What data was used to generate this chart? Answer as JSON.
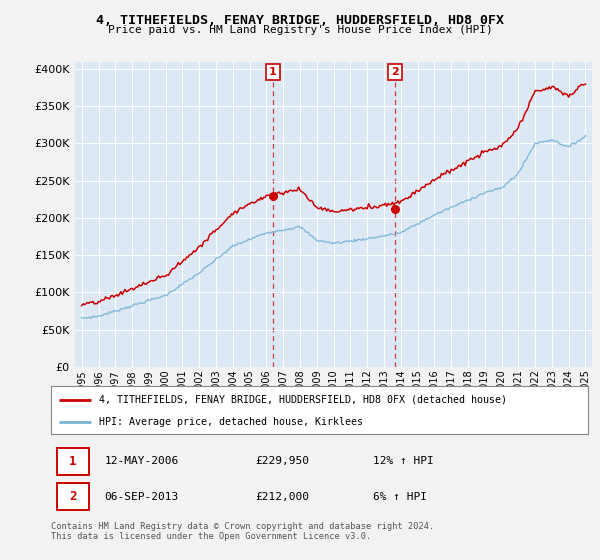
{
  "title": "4, TITHEFIELDS, FENAY BRIDGE, HUDDERSFIELD, HD8 0FX",
  "subtitle": "Price paid vs. HM Land Registry's House Price Index (HPI)",
  "fig_bg": "#f2f2f2",
  "plot_bg": "#dce9f5",
  "legend_line1": "4, TITHEFIELDS, FENAY BRIDGE, HUDDERSFIELD, HD8 0FX (detached house)",
  "legend_line2": "HPI: Average price, detached house, Kirklees",
  "annot1_date": "12-MAY-2006",
  "annot1_price": "£229,950",
  "annot1_hpi": "12% ↑ HPI",
  "annot2_date": "06-SEP-2013",
  "annot2_price": "£212,000",
  "annot2_hpi": "6% ↑ HPI",
  "footer": "Contains HM Land Registry data © Crown copyright and database right 2024.\nThis data is licensed under the Open Government Licence v3.0.",
  "vline1_x": 2006.37,
  "vline2_x": 2013.68,
  "marker1_x": 2006.37,
  "marker1_y": 229950,
  "marker2_x": 2013.68,
  "marker2_y": 212000,
  "ylim": [
    0,
    410000
  ],
  "yticks": [
    0,
    50000,
    100000,
    150000,
    200000,
    250000,
    300000,
    350000,
    400000
  ],
  "xlim": [
    1994.6,
    2025.4
  ],
  "red_color": "#cc0000",
  "blue_color": "#7ab3d4",
  "grid_color": "#ffffff"
}
